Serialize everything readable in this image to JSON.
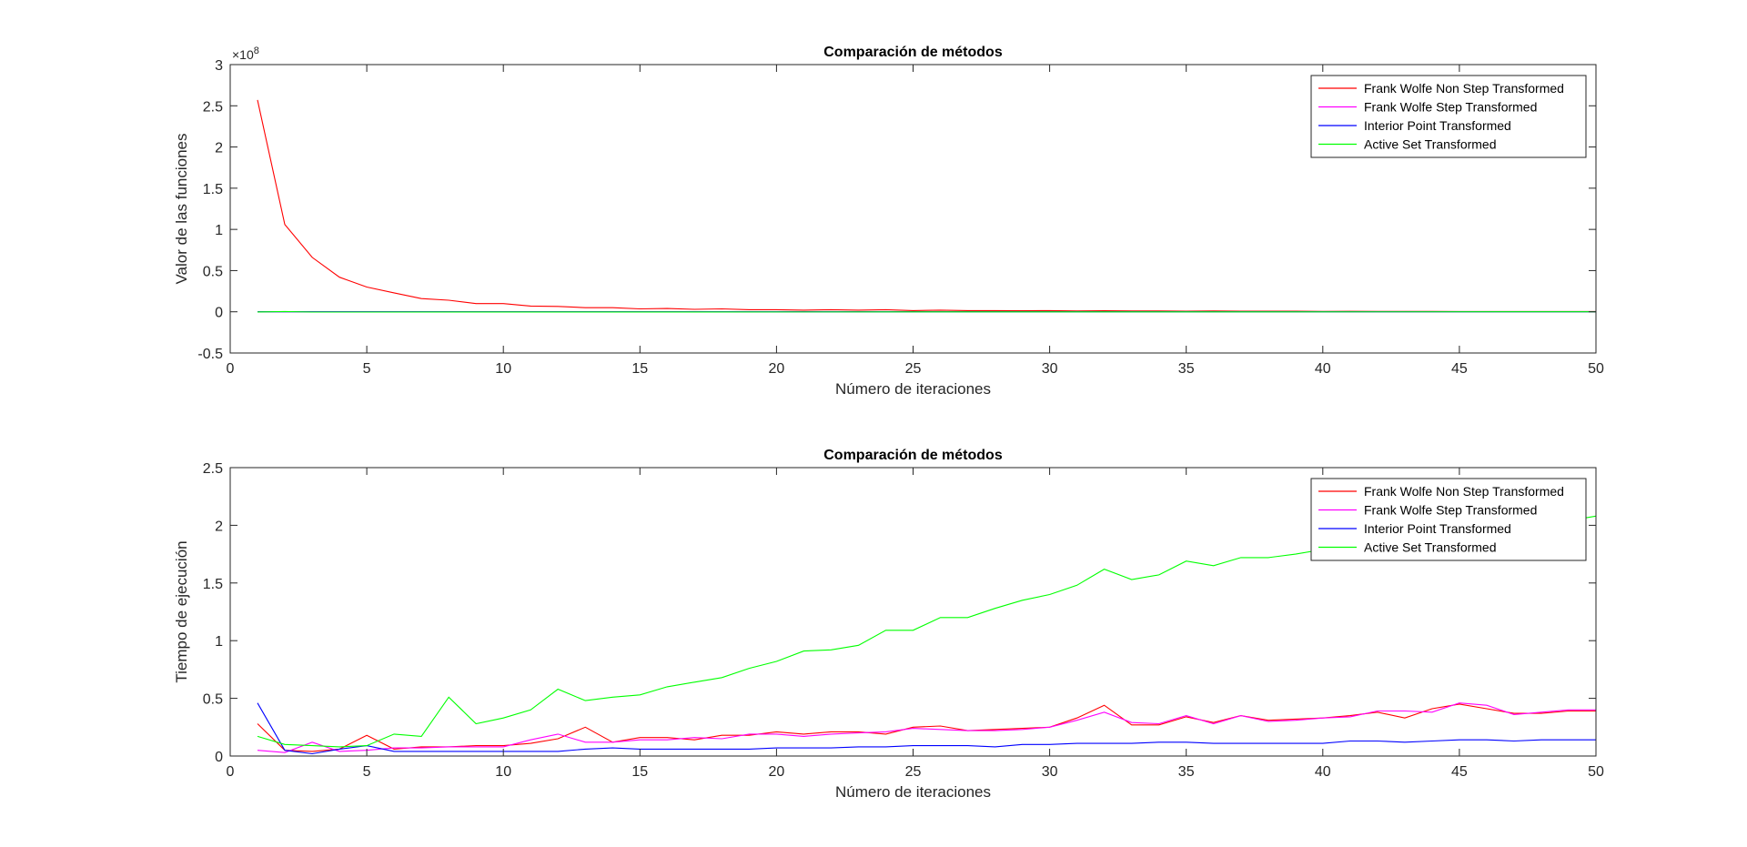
{
  "figure": {
    "background": "#ffffff"
  },
  "chart_data": [
    {
      "type": "line",
      "title": "Comparación de métodos",
      "xlabel": "Número de iteraciones",
      "ylabel": "Valor de las funciones",
      "xlim": [
        0,
        50
      ],
      "ylim": [
        -0.5,
        3
      ],
      "y_scale_label": "×10",
      "y_scale_exponent": "8",
      "xticks": [
        "0",
        "5",
        "10",
        "15",
        "20",
        "25",
        "30",
        "35",
        "40",
        "45",
        "50"
      ],
      "yticks": [
        "-0.5",
        "0",
        "0.5",
        "1",
        "1.5",
        "2",
        "2.5",
        "3"
      ],
      "legend_position": "top-right",
      "series": [
        {
          "name": "Frank Wolfe Non Step Transformed",
          "color": "#ff0000",
          "x": [
            1,
            2,
            3,
            4,
            5,
            6,
            7,
            8,
            9,
            10,
            11,
            12,
            13,
            14,
            15,
            16,
            17,
            18,
            19,
            20,
            21,
            22,
            23,
            24,
            25,
            26,
            27,
            28,
            29,
            30,
            31,
            32,
            33,
            34,
            35,
            36,
            37,
            38,
            39,
            40,
            41,
            42,
            43,
            44,
            45,
            46,
            47,
            48,
            49,
            50
          ],
          "y": [
            2.57,
            1.06,
            0.66,
            0.42,
            0.3,
            0.23,
            0.16,
            0.14,
            0.1,
            0.1,
            0.07,
            0.065,
            0.05,
            0.05,
            0.035,
            0.04,
            0.03,
            0.035,
            0.025,
            0.025,
            0.02,
            0.025,
            0.02,
            0.025,
            0.015,
            0.02,
            0.015,
            0.015,
            0.012,
            0.015,
            0.01,
            0.012,
            0.01,
            0.01,
            0.008,
            0.01,
            0.008,
            0.008,
            0.007,
            0.005,
            0.006,
            0.005,
            0.005,
            0.005,
            0.004,
            0.004,
            0.004,
            0.003,
            0.003,
            0.003
          ]
        },
        {
          "name": "Frank Wolfe Step Transformed",
          "color": "#ff00ff",
          "x": [
            1,
            50
          ],
          "y": [
            0,
            0
          ]
        },
        {
          "name": "Interior Point Transformed",
          "color": "#0000ff",
          "x": [
            1,
            50
          ],
          "y": [
            0,
            0
          ]
        },
        {
          "name": "Active Set Transformed",
          "color": "#00ff00",
          "x": [
            1,
            2,
            3,
            50
          ],
          "y": [
            -0.002,
            0.004,
            -0.003,
            0
          ]
        }
      ]
    },
    {
      "type": "line",
      "title": "Comparación de métodos",
      "xlabel": "Número de iteraciones",
      "ylabel": "Tiempo de ejecución",
      "xlim": [
        0,
        50
      ],
      "ylim": [
        0,
        2.5
      ],
      "xticks": [
        "0",
        "5",
        "10",
        "15",
        "20",
        "25",
        "30",
        "35",
        "40",
        "45",
        "50"
      ],
      "yticks": [
        "0",
        "0.5",
        "1",
        "1.5",
        "2",
        "2.5"
      ],
      "legend_position": "top-right",
      "series": [
        {
          "name": "Frank Wolfe Non Step Transformed",
          "color": "#ff0000",
          "x": [
            1,
            2,
            3,
            4,
            5,
            6,
            7,
            8,
            9,
            10,
            11,
            12,
            13,
            14,
            15,
            16,
            17,
            18,
            19,
            20,
            21,
            22,
            23,
            24,
            25,
            26,
            27,
            28,
            29,
            30,
            31,
            32,
            33,
            34,
            35,
            36,
            37,
            38,
            39,
            40,
            41,
            42,
            43,
            44,
            45,
            46,
            47,
            48,
            49,
            50
          ],
          "y": [
            0.28,
            0.05,
            0.04,
            0.06,
            0.18,
            0.06,
            0.08,
            0.08,
            0.09,
            0.09,
            0.11,
            0.15,
            0.25,
            0.12,
            0.16,
            0.16,
            0.14,
            0.18,
            0.18,
            0.21,
            0.19,
            0.21,
            0.21,
            0.19,
            0.25,
            0.26,
            0.22,
            0.23,
            0.24,
            0.25,
            0.33,
            0.44,
            0.27,
            0.27,
            0.34,
            0.29,
            0.35,
            0.31,
            0.32,
            0.33,
            0.35,
            0.38,
            0.33,
            0.41,
            0.45,
            0.41,
            0.37,
            0.37,
            0.39,
            0.39
          ]
        },
        {
          "name": "Frank Wolfe Step Transformed",
          "color": "#ff00ff",
          "x": [
            1,
            2,
            3,
            4,
            5,
            6,
            7,
            8,
            9,
            10,
            11,
            12,
            13,
            14,
            15,
            16,
            17,
            18,
            19,
            20,
            21,
            22,
            23,
            24,
            25,
            26,
            27,
            28,
            29,
            30,
            31,
            32,
            33,
            34,
            35,
            36,
            37,
            38,
            39,
            40,
            41,
            42,
            43,
            44,
            45,
            46,
            47,
            48,
            49,
            50
          ],
          "y": [
            0.05,
            0.03,
            0.12,
            0.04,
            0.05,
            0.07,
            0.07,
            0.08,
            0.08,
            0.08,
            0.14,
            0.19,
            0.12,
            0.12,
            0.14,
            0.14,
            0.16,
            0.15,
            0.19,
            0.19,
            0.17,
            0.19,
            0.2,
            0.21,
            0.24,
            0.23,
            0.22,
            0.22,
            0.23,
            0.25,
            0.31,
            0.38,
            0.29,
            0.28,
            0.35,
            0.28,
            0.35,
            0.3,
            0.31,
            0.33,
            0.34,
            0.39,
            0.39,
            0.38,
            0.46,
            0.44,
            0.36,
            0.38,
            0.4,
            0.4
          ]
        },
        {
          "name": "Interior Point Transformed",
          "color": "#0000ff",
          "x": [
            1,
            2,
            3,
            4,
            5,
            6,
            7,
            8,
            9,
            10,
            11,
            12,
            13,
            14,
            15,
            16,
            17,
            18,
            19,
            20,
            21,
            22,
            23,
            24,
            25,
            26,
            27,
            28,
            29,
            30,
            31,
            32,
            33,
            34,
            35,
            36,
            37,
            38,
            39,
            40,
            41,
            42,
            43,
            44,
            45,
            46,
            47,
            48,
            49,
            50
          ],
          "y": [
            0.46,
            0.05,
            0.02,
            0.06,
            0.09,
            0.04,
            0.04,
            0.04,
            0.04,
            0.04,
            0.04,
            0.04,
            0.06,
            0.07,
            0.06,
            0.06,
            0.06,
            0.06,
            0.06,
            0.07,
            0.07,
            0.07,
            0.08,
            0.08,
            0.09,
            0.09,
            0.09,
            0.08,
            0.1,
            0.1,
            0.11,
            0.11,
            0.11,
            0.12,
            0.12,
            0.11,
            0.11,
            0.11,
            0.11,
            0.11,
            0.13,
            0.13,
            0.12,
            0.13,
            0.14,
            0.14,
            0.13,
            0.14,
            0.14,
            0.14
          ]
        },
        {
          "name": "Active Set Transformed",
          "color": "#00ff00",
          "x": [
            1,
            2,
            3,
            4,
            5,
            6,
            7,
            8,
            9,
            10,
            11,
            12,
            13,
            14,
            15,
            16,
            17,
            18,
            19,
            20,
            21,
            22,
            23,
            24,
            25,
            26,
            27,
            28,
            29,
            30,
            31,
            32,
            33,
            34,
            35,
            36,
            37,
            38,
            39,
            40,
            41,
            42,
            43,
            44,
            45,
            46,
            47,
            48,
            49,
            50
          ],
          "y": [
            0.17,
            0.1,
            0.09,
            0.08,
            0.09,
            0.19,
            0.17,
            0.51,
            0.28,
            0.33,
            0.4,
            0.58,
            0.48,
            0.51,
            0.53,
            0.6,
            0.64,
            0.68,
            0.76,
            0.82,
            0.91,
            0.92,
            0.96,
            1.09,
            1.09,
            1.2,
            1.2,
            1.28,
            1.35,
            1.4,
            1.48,
            1.62,
            1.53,
            1.57,
            1.69,
            1.65,
            1.72,
            1.72,
            1.75,
            1.79,
            1.83,
            1.84,
            1.88,
            1.92,
            1.95,
            1.96,
            1.98,
            2.0,
            2.04,
            2.08
          ]
        }
      ]
    }
  ]
}
